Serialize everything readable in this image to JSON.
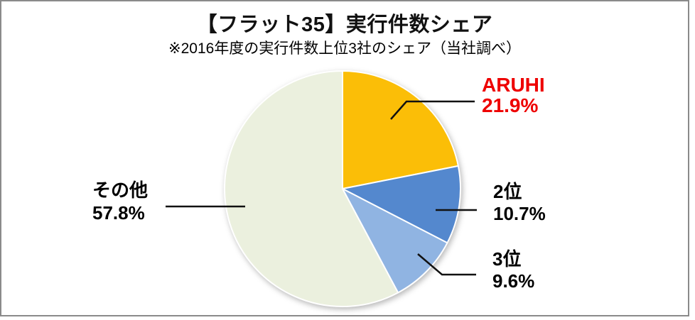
{
  "title": "【フラット35】実行件数シェア",
  "subtitle": "※2016年度の実行件数上位3社のシェア（当社調べ）",
  "frame": {
    "border_color": "#8a8a8a",
    "background": "#ffffff"
  },
  "chart_data": {
    "type": "pie",
    "title": "【フラット35】実行件数シェア",
    "subtitle": "※2016年度の実行件数上位3社のシェア（当社調べ）",
    "start_angle_deg": 0,
    "direction": "clockwise",
    "slice_border_color": "#ffffff",
    "leader_line_color": "#111111",
    "slices": [
      {
        "label": "ARUHI",
        "value_pct": 21.9,
        "pct_label": "21.9%",
        "color": "#fbbe07",
        "label_color": "#ee0000"
      },
      {
        "label": "2位",
        "value_pct": 10.7,
        "pct_label": "10.7%",
        "color": "#5488ce",
        "label_color": "#000000"
      },
      {
        "label": "3位",
        "value_pct": 9.6,
        "pct_label": "9.6%",
        "color": "#90b4e2",
        "label_color": "#000000"
      },
      {
        "label": "その他",
        "value_pct": 57.8,
        "pct_label": "57.8%",
        "color": "#ebf0de",
        "label_color": "#000000"
      }
    ]
  }
}
